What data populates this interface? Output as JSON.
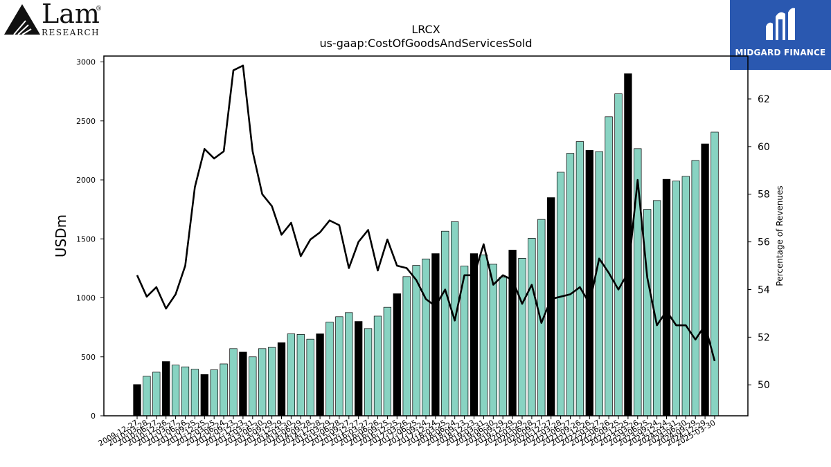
{
  "logo_left": {
    "name": "Lam",
    "sub": "RESEARCH",
    "mark": "®"
  },
  "logo_right": {
    "name": "MIDGARD FINANCE"
  },
  "chart_data": {
    "type": "bar",
    "title": "LRCX",
    "subtitle": "us-gaap:CostOfGoodsAndServicesSold",
    "ylabel": "USDm",
    "y2label": "Percentage of Revenues",
    "ylim": [
      0,
      3050
    ],
    "y2lim": [
      48.7,
      63.8
    ],
    "yticks": [
      0,
      500,
      1000,
      1500,
      2000,
      2500,
      3000
    ],
    "y2ticks": [
      50,
      52,
      54,
      56,
      58,
      60,
      62
    ],
    "bar_colors": {
      "highlight": "#000000",
      "normal": "#88d3c2"
    },
    "categories": [
      "2009-12-27",
      "2010-03-28",
      "2010-06-27",
      "2010-12-26",
      "2011-03-27",
      "2011-06-26",
      "2011-09-25",
      "2011-12-25",
      "2012-03-25",
      "2012-06-24",
      "2012-09-23",
      "2012-12-23",
      "2013-03-31",
      "2013-06-30",
      "2013-09-29",
      "2013-12-29",
      "2014-03-30",
      "2014-06-29",
      "2014-09-28",
      "2014-12-28",
      "2015-03-29",
      "2015-06-28",
      "2015-09-27",
      "2015-12-27",
      "2016-03-27",
      "2016-06-26",
      "2016-09-25",
      "2016-12-25",
      "2017-03-26",
      "2017-06-25",
      "2017-09-24",
      "2017-12-24",
      "2018-03-25",
      "2018-06-24",
      "2018-09-23",
      "2018-12-23",
      "2019-03-31",
      "2019-06-30",
      "2019-09-29",
      "2019-12-29",
      "2020-03-29",
      "2020-06-28",
      "2020-09-27",
      "2020-12-27",
      "2021-03-28",
      "2021-06-27",
      "2021-09-26",
      "2021-12-26",
      "2022-03-27",
      "2022-06-26",
      "2022-09-25",
      "2022-12-25",
      "2023-03-26",
      "2023-06-25",
      "2023-09-24",
      "2023-12-24",
      "2024-03-31",
      "2024-06-30",
      "2024-09-29",
      "2024-12-29",
      "2025-03-30"
    ],
    "tick_labels": [
      "2009-12-27",
      "2010-03-28",
      "2010-06-27",
      "2010-12-26",
      "2011-03-27",
      "2011-06-26",
      "2011-09-25",
      "2011-12-25",
      "2012-03-25",
      "2012-06-24",
      "2012-09-23",
      "2012-12-23",
      "2013-03-31",
      "2013-06-30",
      "2013-09-29",
      "2013-12-29",
      "2014-03-30",
      "2014-06-29",
      "2014-09-28",
      "2014-12-28",
      "2015-03-29",
      "2015-06-28",
      "2015-09-27",
      "2015-12-27",
      "2016-03-27",
      "2016-06-26",
      "2016-09-25",
      "2016-12-25",
      "2017-03-26",
      "2017-06-25",
      "2017-09-24",
      "2017-12-24",
      "2018-03-25",
      "2018-06-24",
      "2018-09-23",
      "2018-12-23",
      "2019-03-31",
      "2019-06-30",
      "2019-09-29",
      "2019-12-29",
      "2020-03-29",
      "2020-06-28",
      "2020-09-27",
      "2020-12-27",
      "2021-03-28",
      "2021-06-27",
      "2021-09-26",
      "2021-12-26",
      "2022-03-27",
      "2022-06-26",
      "2022-09-25",
      "2022-12-25",
      "2023-03-26",
      "2023-06-25",
      "2023-09-24",
      "2023-12-24",
      "2024-03-31",
      "2024-06-30",
      "2024-09-29",
      "2024-12-29",
      "2025-03-30"
    ],
    "values": [
      265,
      335,
      370,
      460,
      430,
      415,
      395,
      350,
      390,
      440,
      570,
      540,
      500,
      570,
      580,
      620,
      695,
      690,
      650,
      695,
      795,
      840,
      875,
      800,
      740,
      845,
      920,
      1035,
      1180,
      1275,
      1330,
      1375,
      1565,
      1645,
      1270,
      1375,
      1365,
      1285,
      1175,
      1405,
      1335,
      1505,
      1665,
      1850,
      2065,
      2225,
      2325,
      2250,
      2240,
      2535,
      2730,
      2900,
      2265,
      1750,
      1825,
      2005,
      1990,
      2030,
      2165,
      2305,
      2405
    ],
    "highlight": [
      true,
      false,
      false,
      true,
      false,
      false,
      false,
      true,
      false,
      false,
      false,
      true,
      false,
      false,
      false,
      true,
      false,
      false,
      false,
      true,
      false,
      false,
      false,
      true,
      false,
      false,
      false,
      true,
      false,
      false,
      false,
      true,
      false,
      false,
      false,
      true,
      false,
      false,
      false,
      true,
      false,
      false,
      false,
      true,
      false,
      false,
      false,
      true,
      false,
      false,
      false,
      true,
      false,
      false,
      false,
      true,
      false,
      false,
      false,
      true,
      false
    ],
    "pct_series": [
      54.6,
      53.7,
      54.1,
      53.2,
      53.8,
      55.0,
      58.3,
      59.9,
      59.5,
      59.8,
      63.2,
      63.4,
      59.8,
      58.0,
      57.5,
      56.3,
      56.8,
      55.4,
      56.1,
      56.4,
      56.9,
      56.7,
      54.9,
      56.0,
      56.5,
      54.8,
      56.1,
      55.0,
      54.9,
      54.4,
      53.6,
      53.3,
      54.0,
      52.7,
      54.6,
      54.6,
      55.9,
      54.2,
      54.6,
      54.4,
      53.4,
      54.2,
      52.6,
      53.6,
      53.7,
      53.8,
      54.1,
      53.4,
      55.3,
      54.7,
      54.0,
      54.7,
      58.6,
      54.5,
      52.5,
      53.1,
      52.5,
      52.5,
      51.9,
      52.5,
      51.0
    ]
  }
}
